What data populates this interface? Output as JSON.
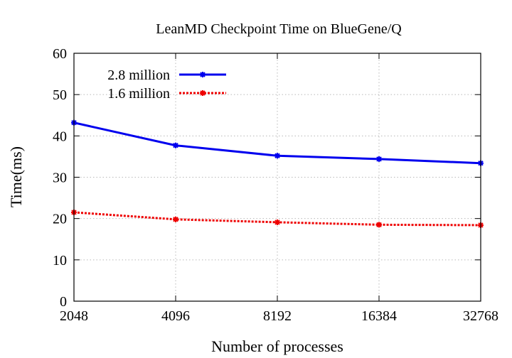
{
  "chart_data": {
    "type": "line",
    "title": "LeanMD Checkpoint Time on BlueGene/Q",
    "xlabel": "Number of processes",
    "ylabel": "Time(ms)",
    "categories": [
      "2048",
      "4096",
      "8192",
      "16384",
      "32768"
    ],
    "yticks": [
      "0",
      "10",
      "20",
      "30",
      "40",
      "50",
      "60"
    ],
    "ylim": [
      0,
      60
    ],
    "grid": true,
    "legend_position": "top-left",
    "series": [
      {
        "name": "2.8 million",
        "color": "#0000ee",
        "dash": "solid",
        "values": [
          43.2,
          37.7,
          35.2,
          34.4,
          33.4
        ]
      },
      {
        "name": "1.6 million",
        "color": "#ee0000",
        "dash": "dotted",
        "values": [
          21.5,
          19.8,
          19.1,
          18.5,
          18.4
        ]
      }
    ]
  }
}
